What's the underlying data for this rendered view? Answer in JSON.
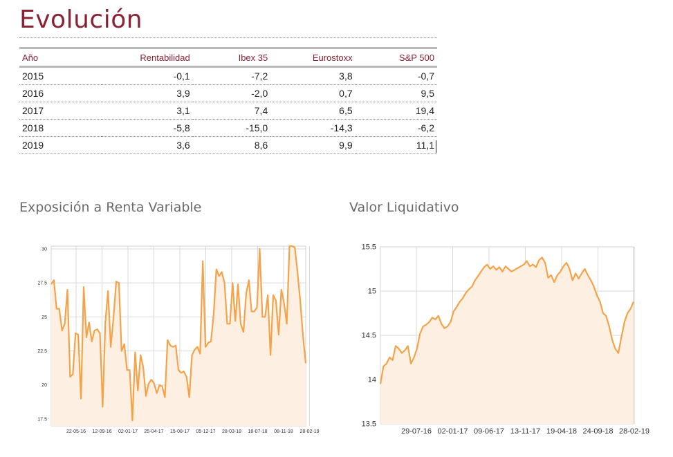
{
  "page": {
    "title": "Evolución"
  },
  "table": {
    "headers": [
      "Año",
      "Rentabilidad",
      "Ibex 35",
      "Eurostoxx",
      "S&P 500"
    ],
    "rows": [
      [
        "2015",
        "-0,1",
        "-7,2",
        "3,8",
        "-0,7"
      ],
      [
        "2016",
        "3,9",
        "-2,0",
        "0,7",
        "9,5"
      ],
      [
        "2017",
        "3,1",
        "7,4",
        "6,5",
        "19,4"
      ],
      [
        "2018",
        "-5,8",
        "-15,0",
        "-14,3",
        "-6,2"
      ],
      [
        "2019",
        "3,6",
        "8,6",
        "9,9",
        "11,1"
      ]
    ]
  },
  "colors": {
    "accent": "#8a2234",
    "line": "#f4a34a",
    "fill": "#fdf0e2",
    "grid": "#d9d9d9"
  },
  "chart_data": [
    {
      "type": "area",
      "title": "Exposición a Renta Variable",
      "xlabel": "",
      "ylabel": "",
      "ylim": [
        17.0,
        30.2
      ],
      "grid": true,
      "y_ticks": [
        {
          "value": 30,
          "label": "30"
        },
        {
          "value": 27.5,
          "label": "27.5"
        },
        {
          "value": 25,
          "label": "25"
        },
        {
          "value": 22.5,
          "label": "22.5"
        },
        {
          "value": 20,
          "label": "20"
        },
        {
          "value": 17.5,
          "label": "17.5"
        }
      ],
      "x_ticks": [
        "22-05-16",
        "12-09-16",
        "02-01-17",
        "25-04-17",
        "15-08-17",
        "05-12-17",
        "28-03-18",
        "18-07-18",
        "08-11-18",
        "28-02-19"
      ],
      "values": [
        27.4,
        27.7,
        25.6,
        25.6,
        24.0,
        24.5,
        27.0,
        20.6,
        20.8,
        23.8,
        23.7,
        19.0,
        27.2,
        23.5,
        24.6,
        23.2,
        24.0,
        24.1,
        23.8,
        18.4,
        24.6,
        26.9,
        22.8,
        24.9,
        27.6,
        27.5,
        22.5,
        23.0,
        21.1,
        21.1,
        17.4,
        22.4,
        19.6,
        22.2,
        21.3,
        19.2,
        20.1,
        20.4,
        20.1,
        19.4,
        20.0,
        19.9,
        19.1,
        23.3,
        22.9,
        22.8,
        22.9,
        21.1,
        20.9,
        21.0,
        20.6,
        19.1,
        22.2,
        22.6,
        22.8,
        22.3,
        29.1,
        22.8,
        23.1,
        23.2,
        25.2,
        28.5,
        28.0,
        28.3,
        27.5,
        24.5,
        24.5,
        27.5,
        24.7,
        27.4,
        24.5,
        23.9,
        26.7,
        27.7,
        25.4,
        25.4,
        25.7,
        30.0,
        25.0,
        25.0,
        26.6,
        22.2,
        26.6,
        26.2,
        23.7,
        27.0,
        26.0,
        24.5,
        30.2,
        30.2,
        30.1,
        28.2,
        26.1,
        23.6,
        21.6
      ]
    },
    {
      "type": "area",
      "title": "Valor Liquidativo",
      "xlabel": "",
      "ylabel": "",
      "ylim": [
        13.5,
        15.5
      ],
      "grid": true,
      "y_ticks": [
        {
          "value": 15.5,
          "label": "15.5"
        },
        {
          "value": 15,
          "label": "15"
        },
        {
          "value": 14.5,
          "label": "14.5"
        },
        {
          "value": 14,
          "label": "14"
        },
        {
          "value": 13.5,
          "label": "13.5"
        }
      ],
      "x_ticks": [
        "29-07-16",
        "02-01-17",
        "09-06-17",
        "13-11-17",
        "19-04-18",
        "24-09-18",
        "28-02-19"
      ],
      "values": [
        13.95,
        14.15,
        14.18,
        14.25,
        14.22,
        14.38,
        14.35,
        14.3,
        14.33,
        14.38,
        14.18,
        14.25,
        14.35,
        14.52,
        14.6,
        14.62,
        14.65,
        14.7,
        14.68,
        14.72,
        14.63,
        14.58,
        14.6,
        14.65,
        14.77,
        14.82,
        14.88,
        14.92,
        14.98,
        15.02,
        15.05,
        15.12,
        15.17,
        15.22,
        15.27,
        15.3,
        15.25,
        15.28,
        15.24,
        15.27,
        15.22,
        15.28,
        15.25,
        15.22,
        15.24,
        15.26,
        15.28,
        15.3,
        15.34,
        15.28,
        15.3,
        15.27,
        15.35,
        15.38,
        15.32,
        15.15,
        15.18,
        15.1,
        15.18,
        15.22,
        15.28,
        15.32,
        15.25,
        15.12,
        15.2,
        15.14,
        15.2,
        15.25,
        15.18,
        15.12,
        15.05,
        14.95,
        14.88,
        14.75,
        14.72,
        14.6,
        14.45,
        14.35,
        14.3,
        14.48,
        14.65,
        14.75,
        14.8,
        14.88
      ]
    }
  ]
}
